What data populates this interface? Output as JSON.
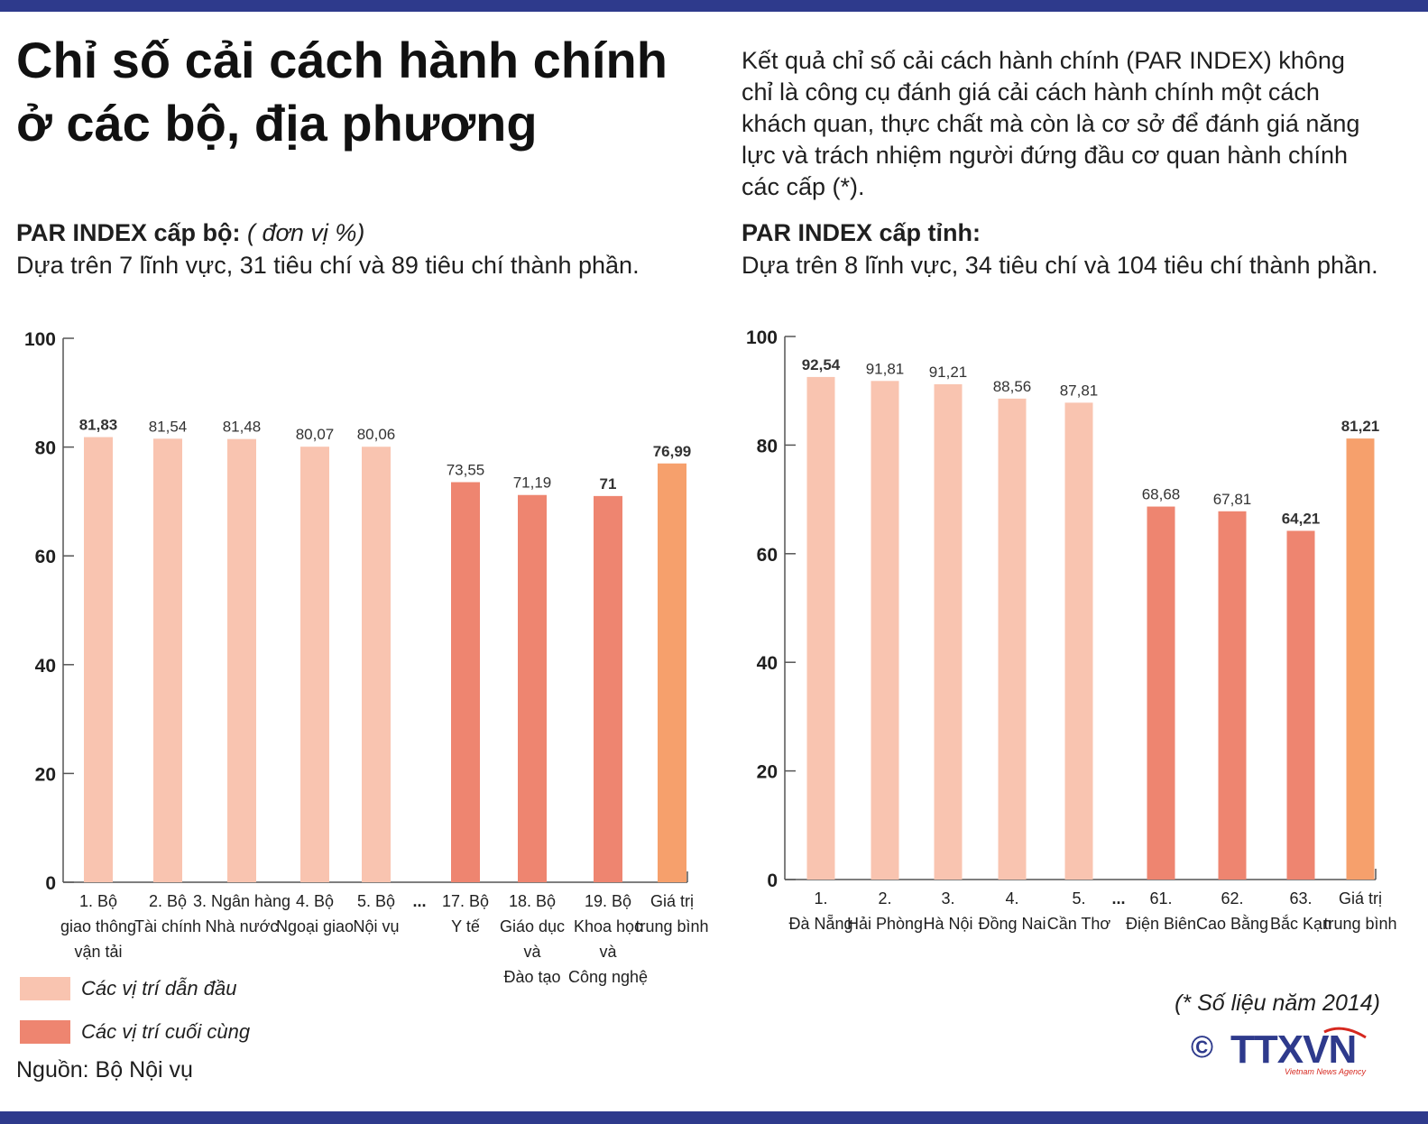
{
  "title_line1": "Chỉ số cải cách hành chính",
  "title_line2": "ở các bộ, địa phương",
  "intro": "Kết quả chỉ số cải cách hành chính (PAR INDEX) không chỉ là công cụ đánh giá cải cách hành chính một cách khách quan, thực chất mà còn là cơ sở để đánh giá năng lực và trách nhiệm người đứng đầu cơ quan hành chính các cấp (*).",
  "left": {
    "heading": "PAR INDEX cấp bộ:",
    "unit": "( đơn vị %)",
    "description": "Dựa trên 7 lĩnh vực, 31 tiêu chí và 89 tiêu chí thành phần."
  },
  "right": {
    "heading": "PAR INDEX cấp tỉnh:",
    "description": "Dựa trên 8 lĩnh vực, 34 tiêu chí và 104 tiêu chí thành phần."
  },
  "colors": {
    "leading": "#f9c4b0",
    "last": "#ee8570",
    "average": "#f6a06c",
    "frame": "#2e3a8c"
  },
  "chart_data": [
    {
      "type": "bar",
      "ylim": [
        0,
        100
      ],
      "yticks": [
        0,
        20,
        40,
        60,
        80,
        100
      ],
      "gap_marker": "...",
      "gap_after_index": 4,
      "categories": [
        [
          "1. Bộ",
          "giao thông",
          "vận tải"
        ],
        [
          "2. Bộ",
          "Tài chính"
        ],
        [
          "3. Ngân hàng",
          "Nhà nước"
        ],
        [
          "4. Bộ",
          "Ngoại giao"
        ],
        [
          "5. Bộ",
          "Nội vụ"
        ],
        [
          "17. Bộ",
          "Y tế"
        ],
        [
          "18. Bộ",
          "Giáo dục",
          "và",
          "Đào tạo"
        ],
        [
          "19. Bộ",
          "Khoa học",
          "và",
          "Công nghệ"
        ],
        [
          "Giá trị",
          "trung bình"
        ]
      ],
      "values": [
        81.83,
        81.54,
        81.48,
        80.07,
        80.06,
        73.55,
        71.19,
        71,
        76.99
      ],
      "value_labels": [
        "81,83",
        "81,54",
        "81,48",
        "80,07",
        "80,06",
        "73,55",
        "71,19",
        "71",
        "76,99"
      ],
      "groups": [
        "leading",
        "leading",
        "leading",
        "leading",
        "leading",
        "last",
        "last",
        "last",
        "average"
      ]
    },
    {
      "type": "bar",
      "ylim": [
        0,
        100
      ],
      "yticks": [
        0,
        20,
        40,
        60,
        80,
        100
      ],
      "gap_marker": "...",
      "gap_after_index": 4,
      "categories": [
        [
          "1.",
          "Đà Nẵng"
        ],
        [
          "2.",
          "Hải Phòng"
        ],
        [
          "3.",
          "Hà Nội"
        ],
        [
          "4.",
          "Đồng Nai"
        ],
        [
          "5.",
          "Cần Thơ"
        ],
        [
          "61.",
          "Điện Biên"
        ],
        [
          "62.",
          "Cao Bằng"
        ],
        [
          "63.",
          "Bắc Kạn"
        ],
        [
          "Giá trị",
          "trung bình"
        ]
      ],
      "values": [
        92.54,
        91.81,
        91.21,
        88.56,
        87.81,
        68.68,
        67.81,
        64.21,
        81.21
      ],
      "value_labels": [
        "92,54",
        "91,81",
        "91,21",
        "88,56",
        "87,81",
        "68,68",
        "67,81",
        "64,21",
        "81,21"
      ],
      "groups": [
        "leading",
        "leading",
        "leading",
        "leading",
        "leading",
        "last",
        "last",
        "last",
        "average"
      ]
    }
  ],
  "legend": [
    {
      "label": "Các vị trí dẫn đầu",
      "group": "leading"
    },
    {
      "label": "Các vị trí cuối cùng",
      "group": "last"
    }
  ],
  "source": "Nguồn: Bộ Nội vụ",
  "note": "(* Số liệu năm 2014)",
  "logo": {
    "copyright": "©",
    "brand": "TTXVN",
    "tagline": "Vietnam News Agency"
  }
}
